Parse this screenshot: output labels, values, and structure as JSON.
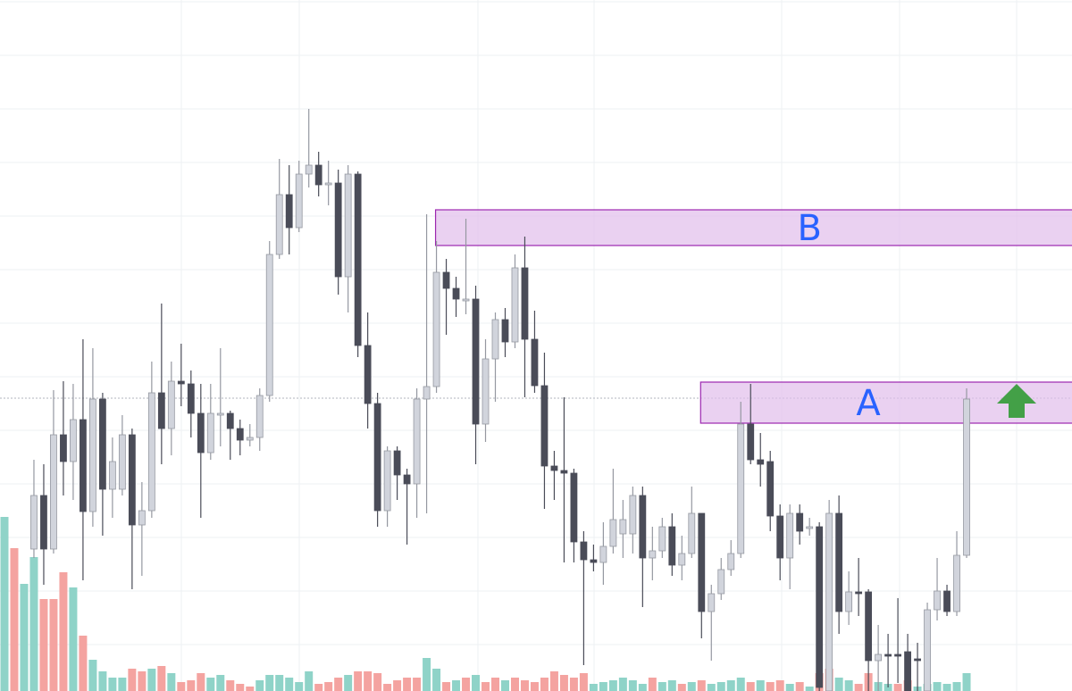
{
  "chart_data": {
    "type": "candlestick",
    "ylim": [
      26,
      800
    ],
    "yticks": [
      798,
      738,
      678,
      618,
      558,
      498,
      438,
      378,
      318,
      258,
      198,
      138,
      78
    ],
    "grid": true,
    "up_color": "#d1d4dc",
    "down_color": "#4a4c58",
    "open": [
      null,
      null,
      null,
      185,
      245,
      185,
      313,
      283,
      330,
      227,
      353,
      252,
      252,
      313,
      212,
      228,
      360,
      320,
      373,
      370,
      337,
      293,
      335,
      337,
      320,
      307,
      310,
      357,
      515,
      582,
      545,
      605,
      615,
      593,
      595,
      490,
      605,
      413,
      348,
      228,
      295,
      268,
      258,
      353,
      367,
      495,
      477,
      463,
      465,
      325,
      398,
      442,
      417,
      500,
      420,
      368,
      278,
      273,
      270,
      193,
      173,
      170,
      188,
      202,
      202,
      245,
      175,
      183,
      210,
      167,
      180,
      225,
      115,
      135,
      162,
      180,
      325,
      285,
      283,
      222,
      175,
      225,
      208,
      210,
      26,
      225,
      115,
      137,
      137,
      60,
      67,
      67,
      70,
      62,
      26,
      117,
      138,
      115,
      178
    ],
    "high": [
      null,
      null,
      null,
      285,
      280,
      363,
      373,
      370,
      420,
      410,
      360,
      310,
      335,
      320,
      260,
      395,
      460,
      395,
      415,
      385,
      370,
      370,
      410,
      340,
      330,
      325,
      365,
      530,
      622,
      615,
      620,
      678,
      630,
      620,
      610,
      615,
      608,
      450,
      360,
      300,
      300,
      275,
      365,
      560,
      530,
      510,
      490,
      555,
      480,
      420,
      450,
      455,
      515,
      535,
      452,
      405,
      295,
      355,
      275,
      205,
      190,
      215,
      275,
      240,
      255,
      255,
      210,
      220,
      225,
      200,
      255,
      225,
      145,
      175,
      195,
      350,
      370,
      315,
      295,
      235,
      235,
      235,
      220,
      215,
      240,
      245,
      160,
      175,
      140,
      100,
      90,
      130,
      90,
      80,
      125,
      175,
      145,
      205,
      365
    ],
    "low": [
      null,
      null,
      null,
      175,
      145,
      180,
      245,
      240,
      150,
      210,
      200,
      220,
      245,
      140,
      155,
      220,
      280,
      290,
      345,
      310,
      220,
      285,
      300,
      285,
      290,
      300,
      295,
      350,
      510,
      515,
      540,
      590,
      580,
      570,
      470,
      450,
      400,
      320,
      210,
      210,
      240,
      190,
      220,
      225,
      360,
      425,
      445,
      448,
      280,
      305,
      350,
      400,
      410,
      355,
      360,
      230,
      240,
      170,
      170,
      55,
      160,
      145,
      180,
      175,
      180,
      120,
      150,
      175,
      155,
      150,
      175,
      85,
      60,
      128,
      155,
      175,
      280,
      255,
      205,
      150,
      140,
      190,
      200,
      26,
      26,
      90,
      100,
      110,
      26,
      26,
      30,
      35,
      26,
      26,
      26,
      105,
      110,
      110,
      175
    ],
    "close": [
      null,
      null,
      null,
      245,
      185,
      313,
      283,
      330,
      227,
      353,
      252,
      283,
      313,
      212,
      228,
      360,
      320,
      373,
      370,
      337,
      293,
      337,
      337,
      320,
      307,
      310,
      357,
      515,
      582,
      545,
      605,
      615,
      593,
      595,
      490,
      605,
      413,
      348,
      228,
      295,
      268,
      258,
      353,
      367,
      495,
      477,
      465,
      465,
      325,
      398,
      442,
      417,
      500,
      420,
      368,
      278,
      273,
      270,
      193,
      173,
      170,
      188,
      218,
      218,
      245,
      175,
      183,
      210,
      167,
      180,
      225,
      115,
      135,
      162,
      180,
      325,
      285,
      280,
      222,
      175,
      225,
      205,
      210,
      30,
      225,
      115,
      137,
      135,
      60,
      67,
      65,
      65,
      26,
      60,
      117,
      138,
      115,
      178,
      353
    ],
    "volume": {
      "y2lim": [
        0,
        200
      ],
      "values": [
        195,
        160,
        120,
        150,
        103,
        103,
        133,
        116,
        62,
        35,
        22,
        15,
        15,
        25,
        22,
        25,
        28,
        20,
        10,
        12,
        20,
        15,
        18,
        12,
        8,
        5,
        12,
        18,
        18,
        15,
        10,
        22,
        8,
        10,
        15,
        18,
        22,
        22,
        20,
        8,
        12,
        15,
        15,
        37,
        25,
        10,
        12,
        15,
        18,
        10,
        15,
        12,
        15,
        12,
        10,
        15,
        22,
        18,
        15,
        20,
        8,
        10,
        12,
        15,
        12,
        8,
        15,
        10,
        12,
        8,
        10,
        12,
        8,
        10,
        12,
        15,
        10,
        12,
        10,
        12,
        8,
        10,
        5,
        20,
        25,
        15,
        12,
        8,
        20,
        10,
        8,
        8,
        12,
        5,
        8,
        10,
        8,
        10,
        20
      ],
      "colors": [
        "#8fd3c8",
        "#f4a3a0",
        "#8fd3c8",
        "#8fd3c8",
        "#f4a3a0",
        "#f4a3a0",
        "#f4a3a0",
        "#8fd3c8",
        "#f4a3a0",
        "#8fd3c8",
        "#8fd3c8",
        "#8fd3c8",
        "#8fd3c8",
        "#f4a3a0",
        "#f4a3a0",
        "#8fd3c8",
        "#f4a3a0",
        "#8fd3c8",
        "#f4a3a0",
        "#f4a3a0",
        "#f4a3a0",
        "#8fd3c8",
        "#8fd3c8",
        "#f4a3a0",
        "#f4a3a0",
        "#f4a3a0",
        "#8fd3c8",
        "#8fd3c8",
        "#8fd3c8",
        "#8fd3c8",
        "#8fd3c8",
        "#8fd3c8",
        "#f4a3a0",
        "#f4a3a0",
        "#f4a3a0",
        "#8fd3c8",
        "#f4a3a0",
        "#f4a3a0",
        "#f4a3a0",
        "#f4a3a0",
        "#f4a3a0",
        "#f4a3a0",
        "#f4a3a0",
        "#8fd3c8",
        "#8fd3c8",
        "#f4a3a0",
        "#8fd3c8",
        "#f4a3a0",
        "#8fd3c8",
        "#f4a3a0",
        "#f4a3a0",
        "#8fd3c8",
        "#f4a3a0",
        "#f4a3a0",
        "#f4a3a0",
        "#f4a3a0",
        "#f4a3a0",
        "#f4a3a0",
        "#f4a3a0",
        "#f4a3a0",
        "#8fd3c8",
        "#8fd3c8",
        "#8fd3c8",
        "#8fd3c8",
        "#8fd3c8",
        "#8fd3c8",
        "#f4a3a0",
        "#8fd3c8",
        "#8fd3c8",
        "#f4a3a0",
        "#8fd3c8",
        "#f4a3a0",
        "#8fd3c8",
        "#8fd3c8",
        "#8fd3c8",
        "#8fd3c8",
        "#f4a3a0",
        "#8fd3c8",
        "#f4a3a0",
        "#f4a3a0",
        "#8fd3c8",
        "#f4a3a0",
        "#8fd3c8",
        "#f4a3a0",
        "#f4a3a0",
        "#8fd3c8",
        "#8fd3c8",
        "#f4a3a0",
        "#f4a3a0",
        "#8fd3c8",
        "#8fd3c8",
        "#f4a3a0",
        "#f4a3a0",
        "#8fd3c8",
        "#8fd3c8",
        "#8fd3c8",
        "#8fd3c8",
        "#8fd3c8",
        "#8fd3c8"
      ]
    },
    "price_line": 354,
    "zones": [
      {
        "label": "B",
        "top": 565,
        "bottom": 525,
        "start": 44,
        "label_at": 82
      },
      {
        "label": "A",
        "top": 372,
        "bottom": 326,
        "start": 71,
        "label_at": 88
      }
    ],
    "zone_fill": "rgba(225,190,235,0.7)",
    "zone_stroke": "#9c27b0",
    "label_color": "#2962ff"
  }
}
